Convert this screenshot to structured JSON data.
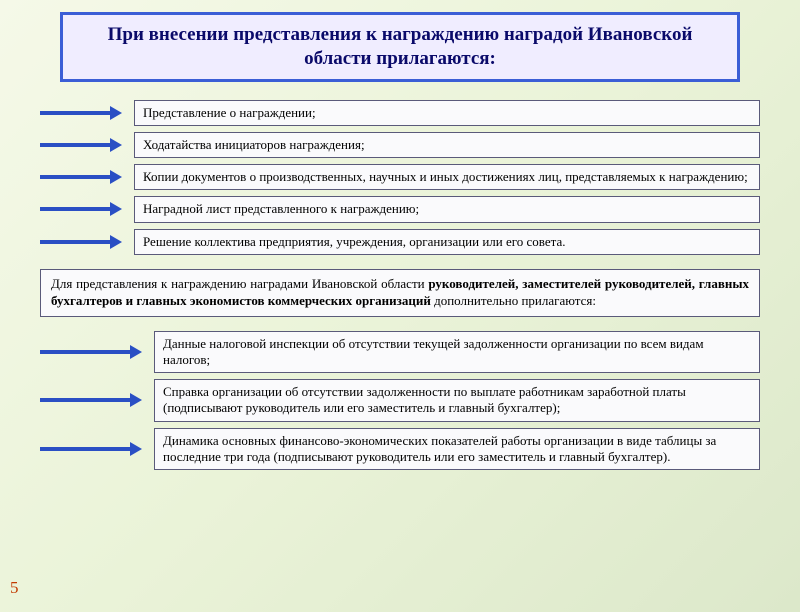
{
  "colors": {
    "title_border": "#3b5ed6",
    "title_bg": "#f0edff",
    "title_text": "#0a0a6a",
    "arrow": "#2a4fc4",
    "box_border": "#5a5a7a",
    "box_bg": "#fafafc",
    "page_num": "#c23a00"
  },
  "layout": {
    "arrow_top_line_width": 70,
    "arrow_bottom_line_width": 90
  },
  "title": "При внесении представления к награждению наградой Ивановской области прилагаются:",
  "top_items": [
    "Представление о награждении;",
    "Ходатайства инициаторов награждения;",
    "Копии документов о производственных, научных и иных достижениях лиц, представляемых к награждению;",
    "Наградной лист представленного к награждению;",
    "Решение коллектива предприятия, учреждения, организации или его совета."
  ],
  "mid": {
    "pre": "Для представления к награждению наградами Ивановской области ",
    "bold": "руководителей, заместителей руководителей, главных бухгалтеров и главных экономистов коммерческих организаций",
    "post": " дополнительно прилагаются:"
  },
  "bottom_items": [
    "Данные налоговой инспекции об отсутствии текущей задолженности организации по всем видам налогов;",
    "Справка организации об отсутствии задолженности по выплате работникам заработной платы (подписывают руководитель или его заместитель и главный бухгалтер);",
    "Динамика основных финансово-экономических показателей работы организации в виде таблицы за последние три года (подписывают руководитель или его заместитель и главный бухгалтер)."
  ],
  "page_number": "5"
}
